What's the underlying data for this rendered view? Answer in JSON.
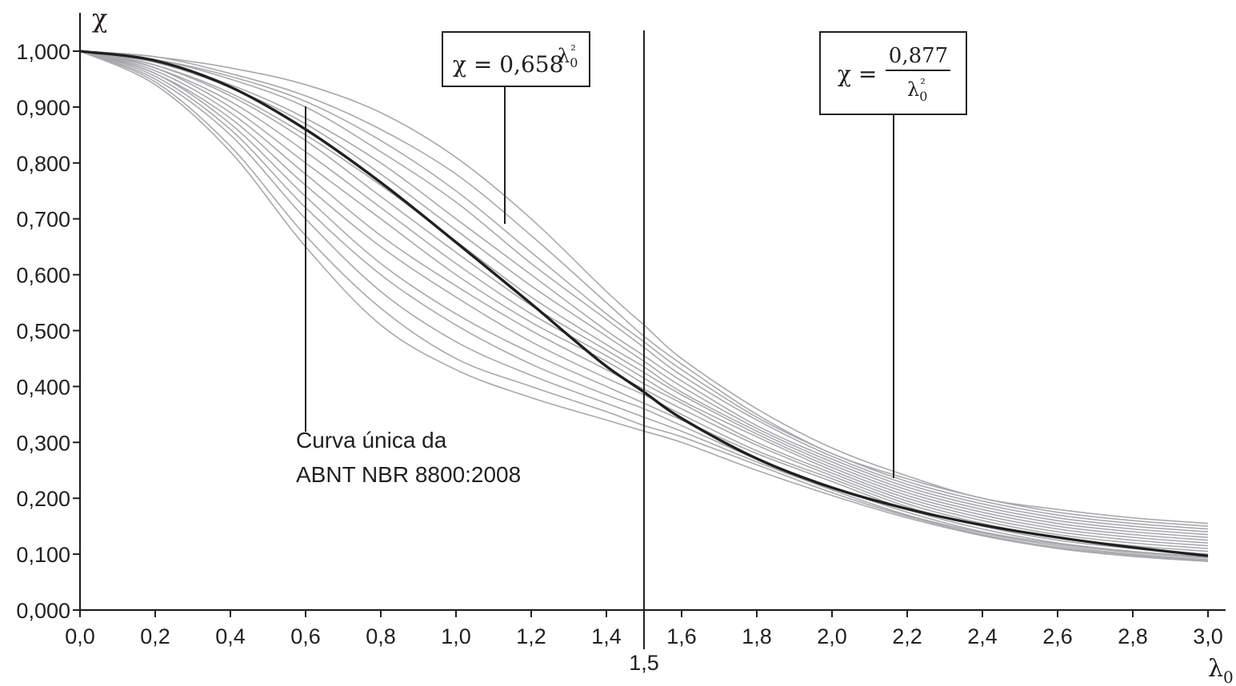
{
  "chart_data": {
    "type": "line",
    "title": "",
    "xlabel": "λ0",
    "ylabel": "χ",
    "xlim": [
      0,
      3.0
    ],
    "ylim": [
      0,
      1.0
    ],
    "x_ticks": [
      "0,0",
      "0,2",
      "0,4",
      "0,6",
      "0,8",
      "1,0",
      "1,2",
      "1,4",
      "1,6",
      "1,8",
      "2,0",
      "2,2",
      "2,4",
      "2,6",
      "2,8",
      "3,0"
    ],
    "y_ticks": [
      "0,000",
      "0,100",
      "0,200",
      "0,300",
      "0,400",
      "0,500",
      "0,600",
      "0,700",
      "0,800",
      "0,900",
      "1,000"
    ],
    "grid": false,
    "highlight_line": {
      "x": 1.5,
      "label": "1,5"
    },
    "main_curve": {
      "color": "#231f20",
      "x": [
        0,
        0.2,
        0.4,
        0.6,
        0.8,
        1.0,
        1.2,
        1.3,
        1.4,
        1.5,
        1.6,
        1.8,
        2.0,
        2.2,
        2.4,
        2.6,
        2.8,
        3.0
      ],
      "y": [
        1.0,
        0.983,
        0.936,
        0.86,
        0.765,
        0.658,
        0.548,
        0.491,
        0.436,
        0.39,
        0.343,
        0.271,
        0.219,
        0.181,
        0.152,
        0.13,
        0.112,
        0.097
      ]
    },
    "background_curves": {
      "color": "#a7a9ac",
      "x": [
        0,
        0.2,
        0.4,
        0.6,
        0.8,
        1.0,
        1.2,
        1.4,
        1.5,
        1.6,
        1.8,
        2.0,
        2.2,
        2.4,
        2.6,
        2.8,
        3.0
      ],
      "series": [
        [
          1.0,
          0.99,
          0.97,
          0.94,
          0.89,
          0.81,
          0.7,
          0.57,
          0.51,
          0.45,
          0.36,
          0.29,
          0.24,
          0.2,
          0.18,
          0.165,
          0.155
        ],
        [
          1.0,
          0.99,
          0.96,
          0.92,
          0.86,
          0.78,
          0.67,
          0.55,
          0.49,
          0.44,
          0.35,
          0.28,
          0.235,
          0.2,
          0.175,
          0.16,
          0.15
        ],
        [
          1.0,
          0.985,
          0.955,
          0.91,
          0.84,
          0.75,
          0.64,
          0.53,
          0.48,
          0.43,
          0.345,
          0.28,
          0.23,
          0.195,
          0.17,
          0.155,
          0.145
        ],
        [
          1.0,
          0.985,
          0.95,
          0.9,
          0.82,
          0.73,
          0.62,
          0.52,
          0.47,
          0.42,
          0.34,
          0.275,
          0.225,
          0.19,
          0.165,
          0.15,
          0.14
        ],
        [
          1.0,
          0.98,
          0.94,
          0.88,
          0.8,
          0.7,
          0.6,
          0.5,
          0.455,
          0.41,
          0.33,
          0.27,
          0.22,
          0.185,
          0.16,
          0.145,
          0.135
        ],
        [
          1.0,
          0.98,
          0.935,
          0.87,
          0.78,
          0.68,
          0.58,
          0.49,
          0.445,
          0.4,
          0.325,
          0.265,
          0.215,
          0.18,
          0.155,
          0.14,
          0.13
        ],
        [
          1.0,
          0.975,
          0.925,
          0.85,
          0.76,
          0.66,
          0.56,
          0.475,
          0.435,
          0.39,
          0.32,
          0.26,
          0.21,
          0.175,
          0.15,
          0.135,
          0.125
        ],
        [
          1.0,
          0.975,
          0.92,
          0.84,
          0.74,
          0.64,
          0.545,
          0.465,
          0.425,
          0.385,
          0.315,
          0.255,
          0.205,
          0.17,
          0.145,
          0.13,
          0.12
        ],
        [
          1.0,
          0.97,
          0.91,
          0.82,
          0.72,
          0.62,
          0.53,
          0.455,
          0.415,
          0.375,
          0.31,
          0.25,
          0.2,
          0.165,
          0.14,
          0.125,
          0.115
        ],
        [
          1.0,
          0.97,
          0.9,
          0.8,
          0.7,
          0.6,
          0.515,
          0.445,
          0.405,
          0.37,
          0.3,
          0.245,
          0.195,
          0.16,
          0.135,
          0.12,
          0.11
        ],
        [
          1.0,
          0.965,
          0.89,
          0.78,
          0.67,
          0.58,
          0.5,
          0.43,
          0.395,
          0.36,
          0.295,
          0.24,
          0.19,
          0.155,
          0.13,
          0.115,
          0.105
        ],
        [
          1.0,
          0.96,
          0.88,
          0.76,
          0.65,
          0.56,
          0.48,
          0.415,
          0.385,
          0.35,
          0.285,
          0.235,
          0.185,
          0.15,
          0.125,
          0.11,
          0.1
        ],
        [
          1.0,
          0.96,
          0.87,
          0.74,
          0.62,
          0.53,
          0.46,
          0.4,
          0.37,
          0.34,
          0.28,
          0.23,
          0.18,
          0.145,
          0.12,
          0.105,
          0.095
        ],
        [
          1.0,
          0.955,
          0.86,
          0.72,
          0.6,
          0.51,
          0.44,
          0.385,
          0.36,
          0.33,
          0.27,
          0.22,
          0.175,
          0.14,
          0.118,
          0.103,
          0.093
        ],
        [
          1.0,
          0.95,
          0.85,
          0.7,
          0.57,
          0.48,
          0.42,
          0.37,
          0.345,
          0.32,
          0.265,
          0.215,
          0.17,
          0.138,
          0.115,
          0.1,
          0.09
        ],
        [
          1.0,
          0.945,
          0.83,
          0.67,
          0.54,
          0.45,
          0.4,
          0.355,
          0.33,
          0.31,
          0.26,
          0.21,
          0.168,
          0.135,
          0.112,
          0.098,
          0.088
        ],
        [
          1.0,
          0.94,
          0.82,
          0.65,
          0.51,
          0.43,
          0.38,
          0.34,
          0.32,
          0.3,
          0.25,
          0.205,
          0.165,
          0.133,
          0.11,
          0.096,
          0.087
        ]
      ]
    },
    "annotations": [
      {
        "label_lines": [
          "Curva única da",
          "ABNT NBR 8800:2008"
        ],
        "points_to_x": 0.6,
        "points_to_y": 0.86
      },
      {
        "formula": "χ = 0,658",
        "superscript": "λ0²",
        "points_to_x": 1.12,
        "points_to_y": 0.6
      },
      {
        "formula_numerator": "0,877",
        "formula_lhs": "χ =",
        "formula_denominator": "λ0²",
        "points_to_x": 2.16,
        "points_to_y": 0.188
      }
    ]
  }
}
